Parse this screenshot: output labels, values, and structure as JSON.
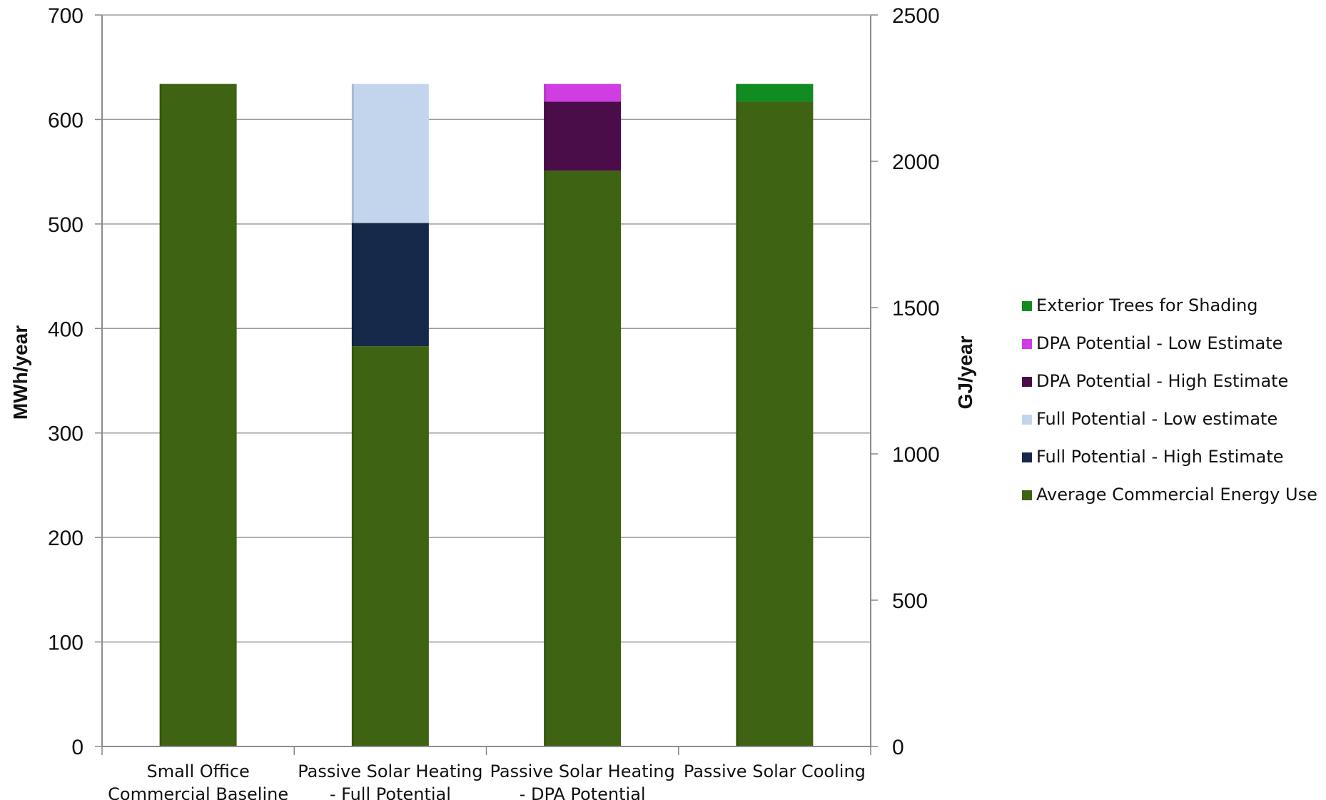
{
  "chart_data": {
    "type": "bar",
    "stacked": true,
    "categories": [
      [
        "Small Office",
        "Commercial Baseline"
      ],
      [
        "Passive Solar Heating",
        "- Full Potential"
      ],
      [
        "Passive Solar Heating",
        "- DPA Potential"
      ],
      [
        "Passive Solar Cooling"
      ]
    ],
    "ylabel": "MWh/year",
    "y2label": "GJ/year",
    "ylim": [
      0,
      700
    ],
    "y2lim": [
      0,
      2500
    ],
    "yticks": [
      "0",
      "100",
      "200",
      "300",
      "400",
      "500",
      "600",
      "700"
    ],
    "y2ticks": [
      "0",
      "500",
      "1000",
      "1500",
      "2000",
      "2500"
    ],
    "grid": true,
    "legend_position": "right",
    "series": [
      {
        "name": "Average Commercial Energy Use",
        "color": "#3e6313",
        "values": [
          634,
          383,
          551,
          617
        ]
      },
      {
        "name": "Full Potential - High Estimate",
        "color": "#17294a",
        "values": [
          0,
          118,
          0,
          0
        ]
      },
      {
        "name": "Full Potential - Low estimate",
        "color": "#c3d5ec",
        "values": [
          0,
          133,
          0,
          0
        ]
      },
      {
        "name": "DPA Potential - High Estimate",
        "color": "#4a0d4a",
        "values": [
          0,
          0,
          66,
          0
        ]
      },
      {
        "name": "DPA Potential - Low Estimate",
        "color": "#cf3de3",
        "values": [
          0,
          0,
          17,
          0
        ]
      },
      {
        "name": "Exterior Trees for Shading",
        "color": "#118c22",
        "values": [
          0,
          0,
          0,
          17
        ]
      }
    ],
    "legend_order": [
      5,
      4,
      3,
      2,
      1,
      0
    ]
  }
}
